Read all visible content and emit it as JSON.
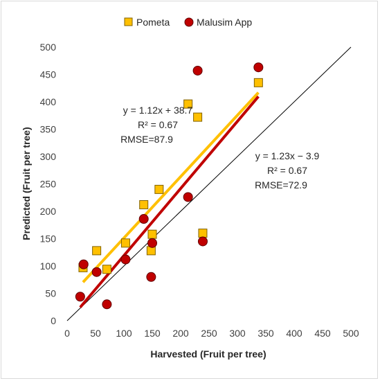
{
  "chart_data": {
    "type": "scatter",
    "title": "",
    "xlabel": "Harvested (Fruit per tree)",
    "ylabel": "Predicted (Fruit per tree)",
    "xlim": [
      0,
      500
    ],
    "ylim": [
      0,
      500
    ],
    "x_ticks": [
      "0",
      "50",
      "100",
      "150",
      "200",
      "250",
      "300",
      "350",
      "400",
      "450",
      "500"
    ],
    "y_ticks": [
      "0",
      "50",
      "100",
      "150",
      "200",
      "250",
      "300",
      "350",
      "400",
      "450",
      "500"
    ],
    "grid": false,
    "legend_position": "top",
    "series": [
      {
        "name": "Pometa",
        "marker": "square",
        "color": "#FFC000",
        "edge_color": "#7F6000",
        "points": [
          [
            28,
            97
          ],
          [
            52,
            128
          ],
          [
            70,
            94
          ],
          [
            103,
            142
          ],
          [
            135,
            212
          ],
          [
            148,
            128
          ],
          [
            150,
            158
          ],
          [
            162,
            240
          ],
          [
            213,
            396
          ],
          [
            230,
            372
          ],
          [
            239,
            160
          ],
          [
            337,
            435
          ]
        ],
        "trendline": {
          "x": [
            28,
            337
          ],
          "color": "#FFC000"
        }
      },
      {
        "name": "Malusim App",
        "marker": "circle",
        "color": "#C00000",
        "edge_color": "#600000",
        "points": [
          [
            23,
            44
          ],
          [
            29,
            103
          ],
          [
            52,
            89
          ],
          [
            70,
            30
          ],
          [
            103,
            112
          ],
          [
            135,
            186
          ],
          [
            148,
            80
          ],
          [
            150,
            142
          ],
          [
            213,
            226
          ],
          [
            230,
            457
          ],
          [
            239,
            145
          ],
          [
            337,
            463
          ]
        ],
        "trendline": {
          "x": [
            23,
            337
          ],
          "color": "#C00000"
        }
      }
    ],
    "reference_line": {
      "x": [
        0,
        500
      ],
      "y": [
        0,
        500
      ],
      "color": "#000000"
    },
    "annotations": [
      {
        "lines": [
          "y = 1.12x + 38.7",
          "R² = 0.67",
          "RMSE=87.9"
        ]
      },
      {
        "lines": [
          "y = 1.23x − 3.9",
          "R² = 0.67",
          "RMSE=72.9"
        ]
      }
    ]
  }
}
